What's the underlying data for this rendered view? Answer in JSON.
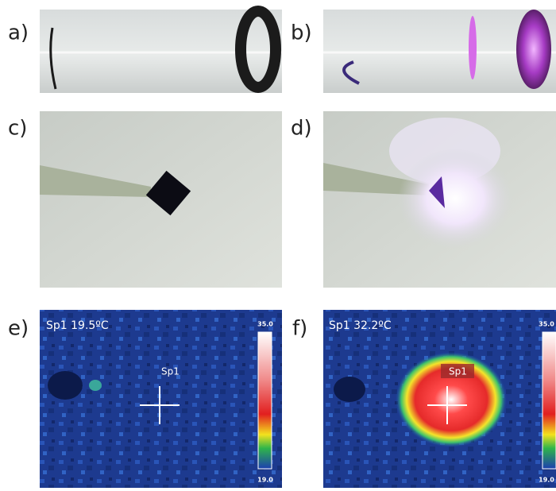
{
  "panels": [
    {
      "label": "a)"
    },
    {
      "label": "b)"
    },
    {
      "label": "c)"
    },
    {
      "label": "d)"
    },
    {
      "label": "e)",
      "readout": "Sp1 19.5ºC",
      "spot": "Sp1",
      "scale_max": "35.0",
      "scale_min": "19.0"
    },
    {
      "label": "f)",
      "readout": "Sp1 32.2ºC",
      "spot": "Sp1",
      "scale_max": "35.0",
      "scale_min": "19.0"
    }
  ]
}
